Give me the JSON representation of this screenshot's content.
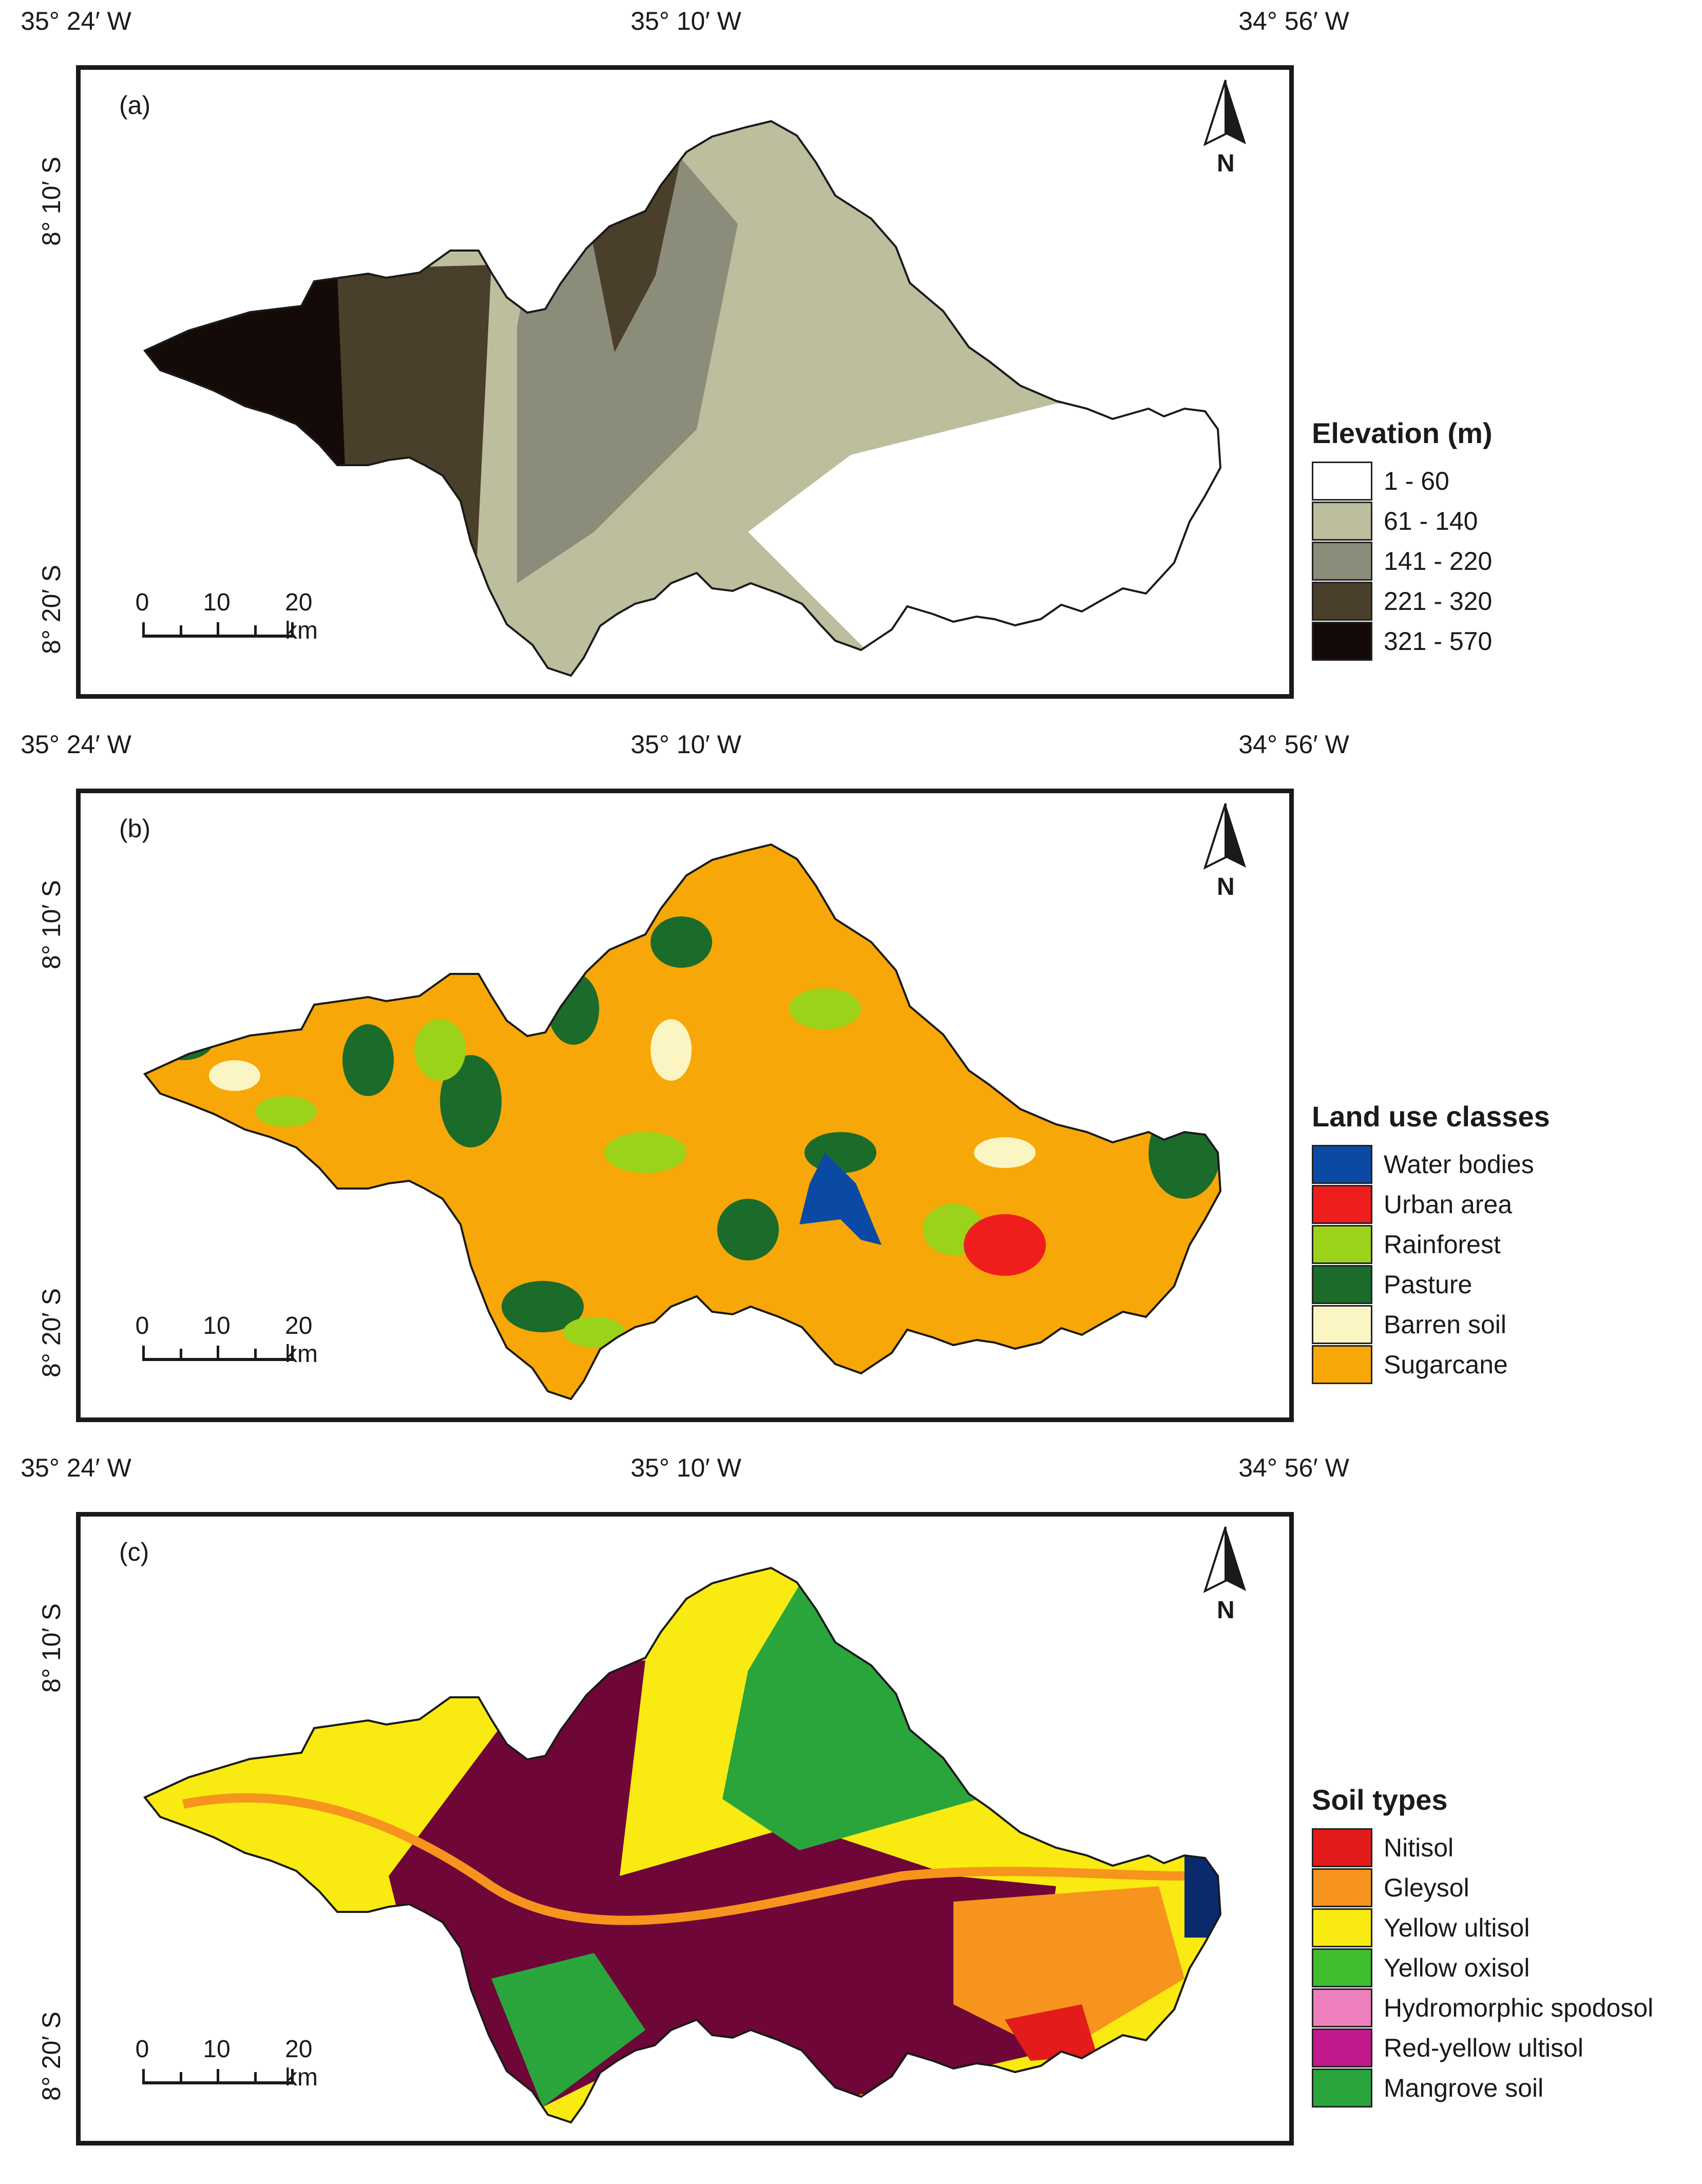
{
  "coordinates": {
    "lon_labels": [
      "35° 24′ W",
      "35° 10′ W",
      "34° 56′ W"
    ],
    "lat_labels": [
      "8° 10′ S",
      "8° 20′ S"
    ]
  },
  "north_label": "N",
  "scale_bar": {
    "labels": [
      "0",
      "10",
      "20 km"
    ]
  },
  "panels": [
    {
      "id": "a",
      "label": "(a)",
      "legend_title": "Elevation (m)",
      "legend": [
        {
          "label": "1 - 60",
          "color": "#ffffff"
        },
        {
          "label": "61 - 140",
          "color": "#bdbe9d"
        },
        {
          "label": "141 - 220",
          "color": "#8b8c7a"
        },
        {
          "label": "221 - 320",
          "color": "#4a3f2a"
        },
        {
          "label": "321 - 570",
          "color": "#140b08"
        }
      ]
    },
    {
      "id": "b",
      "label": "(b)",
      "legend_title": "Land use classes",
      "legend": [
        {
          "label": "Water bodies",
          "color": "#0a4aa5"
        },
        {
          "label": "Urban area",
          "color": "#f01d1d"
        },
        {
          "label": "Rainforest",
          "color": "#9bd31b"
        },
        {
          "label": "Pasture",
          "color": "#1b6b2a"
        },
        {
          "label": "Barren soil",
          "color": "#fbf5c3"
        },
        {
          "label": "Sugarcane",
          "color": "#f7a707"
        }
      ]
    },
    {
      "id": "c",
      "label": "(c)",
      "legend_title": "Soil types",
      "legend": [
        {
          "label": "Nitisol",
          "color": "#e31b1b"
        },
        {
          "label": "Gleysol",
          "color": "#f7941d"
        },
        {
          "label": "Yellow ultisol",
          "color": "#f9ea12"
        },
        {
          "label": "Yellow oxisol",
          "color": "#3ebd2f"
        },
        {
          "label": "Hydromorphic spodosol",
          "color": "#ee7fbd"
        },
        {
          "label": "Red-yellow ultisol",
          "color": "#c2198c"
        },
        {
          "label": "Mangrove soil",
          "color": "#2aa53c"
        }
      ]
    }
  ]
}
